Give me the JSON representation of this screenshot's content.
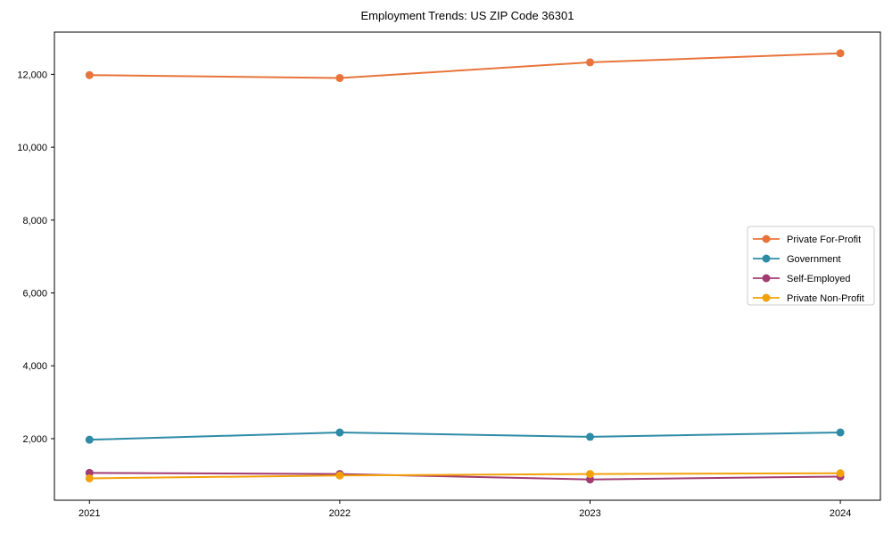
{
  "chart_data": {
    "type": "line",
    "title": "Employment Trends: US ZIP Code 36301",
    "xlabel": "",
    "ylabel": "",
    "categories": [
      "2021",
      "2022",
      "2023",
      "2024"
    ],
    "x_values": [
      2021,
      2022,
      2023,
      2024
    ],
    "series": [
      {
        "name": "Private For-Profit",
        "color": "#E8743B",
        "values": [
          11980,
          11900,
          12330,
          12580
        ]
      },
      {
        "name": "Government",
        "color": "#2E8BA6",
        "values": [
          1970,
          2170,
          2050,
          2170
        ]
      },
      {
        "name": "Self-Employed",
        "color": "#A23B72",
        "values": [
          1060,
          1030,
          880,
          960
        ]
      },
      {
        "name": "Private Non-Profit",
        "color": "#F2A10A",
        "values": [
          910,
          990,
          1030,
          1050
        ]
      }
    ],
    "y_ticks": [
      {
        "value": 2000,
        "label": "2,000"
      },
      {
        "value": 4000,
        "label": "4,000"
      },
      {
        "value": 6000,
        "label": "6,000"
      },
      {
        "value": 8000,
        "label": "8,000"
      },
      {
        "value": 10000,
        "label": "10,000"
      },
      {
        "value": 12000,
        "label": "12,000"
      }
    ],
    "xlim": [
      2020.86,
      2024.16
    ],
    "ylim": [
      310,
      13160
    ],
    "grid": false,
    "legend_position": "center right"
  },
  "colors": {
    "background": "#ffffff",
    "axis_border": "#000000",
    "tick_label": "#000000",
    "legend_border": "#cccccc",
    "legend_background": "#ffffff"
  }
}
